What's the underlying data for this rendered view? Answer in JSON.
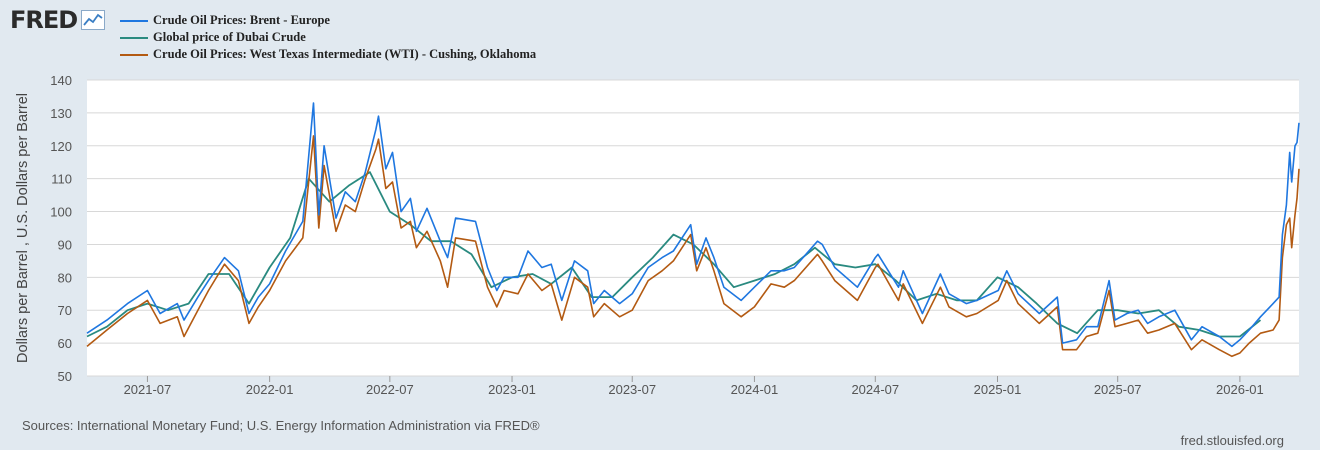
{
  "brand": {
    "name": "FRED",
    "icon": "line-chart-icon"
  },
  "chart_data": {
    "type": "line",
    "xlabel": "",
    "ylabel": "Dollars per Barrel , U.S. Dollars per Barrel",
    "ylim": [
      50,
      140
    ],
    "y_ticks": [
      50,
      60,
      70,
      80,
      90,
      100,
      110,
      120,
      130,
      140
    ],
    "x_range": [
      "2021-04-01",
      "2026-03-31"
    ],
    "x_ticks": [
      "2021-07",
      "2022-01",
      "2022-07",
      "2023-01",
      "2023-07",
      "2024-01",
      "2024-07",
      "2025-01",
      "2025-07",
      "2026-01"
    ],
    "grid": "horizontal",
    "legend": "top-left",
    "series": [
      {
        "name": "Crude Oil Prices: Brent - Europe",
        "color": "#1f77e0",
        "points": [
          [
            "2021-04-01",
            63
          ],
          [
            "2021-05-01",
            67
          ],
          [
            "2021-06-01",
            72
          ],
          [
            "2021-07-01",
            76
          ],
          [
            "2021-07-20",
            69
          ],
          [
            "2021-08-15",
            72
          ],
          [
            "2021-08-25",
            67
          ],
          [
            "2021-09-15",
            74
          ],
          [
            "2021-10-01",
            79
          ],
          [
            "2021-10-25",
            86
          ],
          [
            "2021-11-15",
            82
          ],
          [
            "2021-12-01",
            69
          ],
          [
            "2021-12-15",
            74
          ],
          [
            "2022-01-01",
            78
          ],
          [
            "2022-01-25",
            88
          ],
          [
            "2022-02-20",
            97
          ],
          [
            "2022-03-08",
            133
          ],
          [
            "2022-03-16",
            99
          ],
          [
            "2022-03-24",
            120
          ],
          [
            "2022-04-11",
            98
          ],
          [
            "2022-04-25",
            106
          ],
          [
            "2022-05-10",
            103
          ],
          [
            "2022-05-25",
            112
          ],
          [
            "2022-06-10",
            125
          ],
          [
            "2022-06-14",
            129
          ],
          [
            "2022-06-25",
            113
          ],
          [
            "2022-07-05",
            118
          ],
          [
            "2022-07-18",
            100
          ],
          [
            "2022-08-01",
            104
          ],
          [
            "2022-08-10",
            94
          ],
          [
            "2022-08-26",
            101
          ],
          [
            "2022-09-15",
            91
          ],
          [
            "2022-09-26",
            86
          ],
          [
            "2022-10-08",
            98
          ],
          [
            "2022-11-07",
            97
          ],
          [
            "2022-11-25",
            83
          ],
          [
            "2022-12-09",
            76
          ],
          [
            "2022-12-20",
            80
          ],
          [
            "2023-01-10",
            80
          ],
          [
            "2023-01-25",
            88
          ],
          [
            "2023-02-15",
            83
          ],
          [
            "2023-03-01",
            84
          ],
          [
            "2023-03-17",
            73
          ],
          [
            "2023-04-05",
            85
          ],
          [
            "2023-04-25",
            82
          ],
          [
            "2023-05-04",
            72
          ],
          [
            "2023-05-20",
            76
          ],
          [
            "2023-06-12",
            72
          ],
          [
            "2023-07-01",
            75
          ],
          [
            "2023-07-25",
            83
          ],
          [
            "2023-08-15",
            86
          ],
          [
            "2023-09-01",
            88
          ],
          [
            "2023-09-27",
            96
          ],
          [
            "2023-10-06",
            84
          ],
          [
            "2023-10-20",
            92
          ],
          [
            "2023-11-01",
            86
          ],
          [
            "2023-11-16",
            77
          ],
          [
            "2023-12-12",
            73
          ],
          [
            "2024-01-01",
            77
          ],
          [
            "2024-01-26",
            82
          ],
          [
            "2024-02-15",
            82
          ],
          [
            "2024-03-01",
            83
          ],
          [
            "2024-04-05",
            91
          ],
          [
            "2024-04-12",
            90
          ],
          [
            "2024-05-01",
            83
          ],
          [
            "2024-06-04",
            77
          ],
          [
            "2024-07-01",
            86
          ],
          [
            "2024-07-05",
            87
          ],
          [
            "2024-08-05",
            77
          ],
          [
            "2024-08-12",
            82
          ],
          [
            "2024-09-10",
            69
          ],
          [
            "2024-10-07",
            81
          ],
          [
            "2024-10-20",
            75
          ],
          [
            "2024-11-15",
            72
          ],
          [
            "2024-12-01",
            73
          ],
          [
            "2025-01-02",
            76
          ],
          [
            "2025-01-15",
            82
          ],
          [
            "2025-02-01",
            75
          ],
          [
            "2025-03-05",
            69
          ],
          [
            "2025-04-01",
            74
          ],
          [
            "2025-04-09",
            60
          ],
          [
            "2025-04-30",
            61
          ],
          [
            "2025-05-15",
            65
          ],
          [
            "2025-06-01",
            65
          ],
          [
            "2025-06-18",
            79
          ],
          [
            "2025-06-27",
            67
          ],
          [
            "2025-07-15",
            69
          ],
          [
            "2025-08-01",
            70
          ],
          [
            "2025-08-15",
            66
          ],
          [
            "2025-09-01",
            68
          ],
          [
            "2025-09-25",
            70
          ],
          [
            "2025-10-20",
            61
          ],
          [
            "2025-11-05",
            65
          ],
          [
            "2025-12-01",
            62
          ],
          [
            "2025-12-20",
            59
          ],
          [
            "2026-01-01",
            61
          ],
          [
            "2026-01-15",
            64
          ],
          [
            "2026-02-01",
            68
          ],
          [
            "2026-02-20",
            72
          ],
          [
            "2026-03-01",
            74
          ],
          [
            "2026-03-06",
            93
          ],
          [
            "2026-03-12",
            102
          ],
          [
            "2026-03-17",
            118
          ],
          [
            "2026-03-20",
            109
          ],
          [
            "2026-03-25",
            120
          ],
          [
            "2026-03-28",
            121
          ],
          [
            "2026-03-31",
            127
          ]
        ]
      },
      {
        "name": "Global price of Dubai Crude",
        "color": "#2a8a80",
        "points": [
          [
            "2021-04-01",
            62
          ],
          [
            "2021-05-01",
            65
          ],
          [
            "2021-06-01",
            70
          ],
          [
            "2021-07-01",
            72
          ],
          [
            "2021-08-01",
            70
          ],
          [
            "2021-09-01",
            72
          ],
          [
            "2021-10-01",
            81
          ],
          [
            "2021-11-01",
            81
          ],
          [
            "2021-12-01",
            72
          ],
          [
            "2022-01-01",
            83
          ],
          [
            "2022-02-01",
            92
          ],
          [
            "2022-03-01",
            110
          ],
          [
            "2022-04-01",
            103
          ],
          [
            "2022-05-01",
            108
          ],
          [
            "2022-06-01",
            112
          ],
          [
            "2022-07-01",
            100
          ],
          [
            "2022-08-01",
            96
          ],
          [
            "2022-09-01",
            91
          ],
          [
            "2022-10-01",
            91
          ],
          [
            "2022-11-01",
            87
          ],
          [
            "2022-12-01",
            77
          ],
          [
            "2023-01-01",
            80
          ],
          [
            "2023-02-01",
            81
          ],
          [
            "2023-03-01",
            78
          ],
          [
            "2023-04-01",
            83
          ],
          [
            "2023-05-01",
            74
          ],
          [
            "2023-06-01",
            74
          ],
          [
            "2023-07-01",
            80
          ],
          [
            "2023-08-01",
            86
          ],
          [
            "2023-09-01",
            93
          ],
          [
            "2023-10-01",
            90
          ],
          [
            "2023-11-01",
            84
          ],
          [
            "2023-12-01",
            77
          ],
          [
            "2024-01-01",
            79
          ],
          [
            "2024-02-01",
            81
          ],
          [
            "2024-03-01",
            84
          ],
          [
            "2024-04-01",
            89
          ],
          [
            "2024-05-01",
            84
          ],
          [
            "2024-06-01",
            83
          ],
          [
            "2024-07-01",
            84
          ],
          [
            "2024-08-01",
            79
          ],
          [
            "2024-09-01",
            73
          ],
          [
            "2024-10-01",
            75
          ],
          [
            "2024-11-01",
            73
          ],
          [
            "2024-12-01",
            73
          ],
          [
            "2025-01-01",
            80
          ],
          [
            "2025-02-01",
            77
          ],
          [
            "2025-03-01",
            72
          ],
          [
            "2025-04-01",
            66
          ],
          [
            "2025-05-01",
            63
          ],
          [
            "2025-06-01",
            70
          ],
          [
            "2025-07-01",
            70
          ],
          [
            "2025-08-01",
            69
          ],
          [
            "2025-09-01",
            70
          ],
          [
            "2025-10-01",
            65
          ],
          [
            "2025-11-01",
            64
          ],
          [
            "2025-12-01",
            62
          ],
          [
            "2026-01-01",
            62
          ],
          [
            "2026-02-01",
            67
          ]
        ]
      },
      {
        "name": "Crude Oil Prices: West Texas Intermediate (WTI) - Cushing, Oklahoma",
        "color": "#b35a12",
        "points": [
          [
            "2021-04-01",
            59
          ],
          [
            "2021-05-01",
            64
          ],
          [
            "2021-06-01",
            69
          ],
          [
            "2021-07-01",
            73
          ],
          [
            "2021-07-20",
            66
          ],
          [
            "2021-08-15",
            68
          ],
          [
            "2021-08-25",
            62
          ],
          [
            "2021-09-15",
            70
          ],
          [
            "2021-10-01",
            76
          ],
          [
            "2021-10-25",
            84
          ],
          [
            "2021-11-15",
            79
          ],
          [
            "2021-12-01",
            66
          ],
          [
            "2021-12-15",
            71
          ],
          [
            "2022-01-01",
            76
          ],
          [
            "2022-01-25",
            85
          ],
          [
            "2022-02-20",
            92
          ],
          [
            "2022-03-08",
            123
          ],
          [
            "2022-03-16",
            95
          ],
          [
            "2022-03-24",
            114
          ],
          [
            "2022-04-11",
            94
          ],
          [
            "2022-04-25",
            102
          ],
          [
            "2022-05-10",
            100
          ],
          [
            "2022-05-25",
            110
          ],
          [
            "2022-06-10",
            119
          ],
          [
            "2022-06-14",
            122
          ],
          [
            "2022-06-25",
            107
          ],
          [
            "2022-07-05",
            109
          ],
          [
            "2022-07-18",
            95
          ],
          [
            "2022-08-01",
            97
          ],
          [
            "2022-08-10",
            89
          ],
          [
            "2022-08-26",
            94
          ],
          [
            "2022-09-15",
            85
          ],
          [
            "2022-09-26",
            77
          ],
          [
            "2022-10-08",
            92
          ],
          [
            "2022-11-07",
            91
          ],
          [
            "2022-11-25",
            77
          ],
          [
            "2022-12-09",
            71
          ],
          [
            "2022-12-20",
            76
          ],
          [
            "2023-01-10",
            75
          ],
          [
            "2023-01-25",
            81
          ],
          [
            "2023-02-15",
            76
          ],
          [
            "2023-03-01",
            78
          ],
          [
            "2023-03-17",
            67
          ],
          [
            "2023-04-05",
            80
          ],
          [
            "2023-04-25",
            77
          ],
          [
            "2023-05-04",
            68
          ],
          [
            "2023-05-20",
            72
          ],
          [
            "2023-06-12",
            68
          ],
          [
            "2023-07-01",
            70
          ],
          [
            "2023-07-25",
            79
          ],
          [
            "2023-08-15",
            82
          ],
          [
            "2023-09-01",
            85
          ],
          [
            "2023-09-27",
            93
          ],
          [
            "2023-10-06",
            82
          ],
          [
            "2023-10-20",
            89
          ],
          [
            "2023-11-01",
            82
          ],
          [
            "2023-11-16",
            72
          ],
          [
            "2023-12-12",
            68
          ],
          [
            "2024-01-01",
            71
          ],
          [
            "2024-01-26",
            78
          ],
          [
            "2024-02-15",
            77
          ],
          [
            "2024-03-01",
            79
          ],
          [
            "2024-04-05",
            87
          ],
          [
            "2024-04-12",
            85
          ],
          [
            "2024-05-01",
            79
          ],
          [
            "2024-06-04",
            73
          ],
          [
            "2024-07-01",
            83
          ],
          [
            "2024-07-05",
            84
          ],
          [
            "2024-08-05",
            73
          ],
          [
            "2024-08-12",
            78
          ],
          [
            "2024-09-10",
            66
          ],
          [
            "2024-10-07",
            77
          ],
          [
            "2024-10-20",
            71
          ],
          [
            "2024-11-15",
            68
          ],
          [
            "2024-12-01",
            69
          ],
          [
            "2025-01-02",
            73
          ],
          [
            "2025-01-15",
            79
          ],
          [
            "2025-02-01",
            72
          ],
          [
            "2025-03-05",
            66
          ],
          [
            "2025-04-01",
            71
          ],
          [
            "2025-04-09",
            58
          ],
          [
            "2025-04-30",
            58
          ],
          [
            "2025-05-15",
            62
          ],
          [
            "2025-06-01",
            63
          ],
          [
            "2025-06-18",
            76
          ],
          [
            "2025-06-27",
            65
          ],
          [
            "2025-07-15",
            66
          ],
          [
            "2025-08-01",
            67
          ],
          [
            "2025-08-15",
            63
          ],
          [
            "2025-09-01",
            64
          ],
          [
            "2025-09-25",
            66
          ],
          [
            "2025-10-20",
            58
          ],
          [
            "2025-11-05",
            61
          ],
          [
            "2025-12-01",
            58
          ],
          [
            "2025-12-20",
            56
          ],
          [
            "2026-01-01",
            57
          ],
          [
            "2026-01-15",
            60
          ],
          [
            "2026-02-01",
            63
          ],
          [
            "2026-02-20",
            64
          ],
          [
            "2026-03-01",
            67
          ],
          [
            "2026-03-06",
            86
          ],
          [
            "2026-03-12",
            96
          ],
          [
            "2026-03-17",
            98
          ],
          [
            "2026-03-20",
            89
          ],
          [
            "2026-03-25",
            99
          ],
          [
            "2026-03-28",
            104
          ],
          [
            "2026-03-31",
            113
          ]
        ]
      }
    ]
  },
  "sources": "Sources: International Monetary Fund; U.S. Energy Information Administration via FRED®",
  "site": "fred.stlouisfed.org"
}
